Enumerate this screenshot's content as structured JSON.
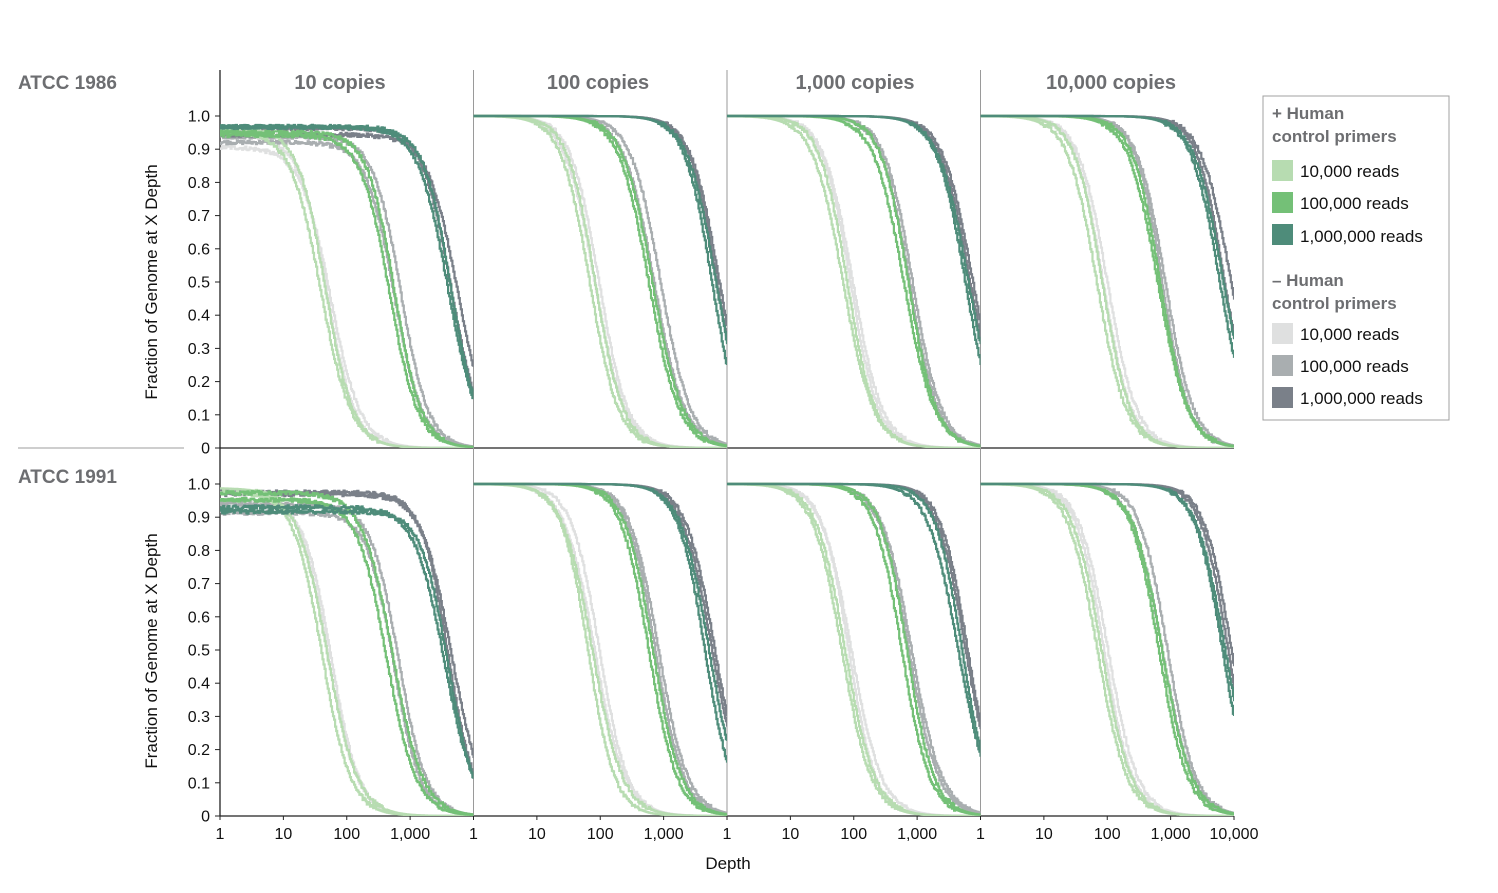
{
  "chart_data": {
    "type": "line",
    "row_labels": [
      "ATCC 1986",
      "ATCC 1991"
    ],
    "column_titles": [
      "10 copies",
      "100 copies",
      "1,000 copies",
      "10,000 copies"
    ],
    "ylabel": "Fraction of Genome  at X Depth",
    "xlabel": "Depth",
    "x_scale": "log",
    "xlim": [
      1,
      10000
    ],
    "ylim": [
      0,
      1.0
    ],
    "y_ticks": [
      "0",
      "0.1",
      "0.2",
      "0.3",
      "0.4",
      "0.5",
      "0.6",
      "0.7",
      "0.8",
      "0.9",
      "1.0"
    ],
    "x_ticks_first": [
      "1",
      "10",
      "100",
      "1,000"
    ],
    "x_ticks_last": [
      "1",
      "10",
      "100",
      "1,000",
      "10,000"
    ],
    "legend": {
      "plus_heading_line1": "+ Human",
      "plus_heading_line2": "control primers",
      "minus_heading_line1": "– Human",
      "minus_heading_line2": "control primers",
      "plus_items": [
        {
          "label": "10,000 reads",
          "color": "#b7dcb1"
        },
        {
          "label": "100,000 reads",
          "color": "#74c077"
        },
        {
          "label": "1,000,000 reads",
          "color": "#4e8c7a"
        }
      ],
      "minus_items": [
        {
          "label": "10,000 reads",
          "color": "#dfe0e0"
        },
        {
          "label": "100,000 reads",
          "color": "#a9aeb0"
        },
        {
          "label": "1,000,000 reads",
          "color": "#7a8089"
        }
      ]
    },
    "series_groups": [
      {
        "group": "+ Human control primers",
        "reads": "10,000 reads",
        "color": "#b7dcb1"
      },
      {
        "group": "+ Human control primers",
        "reads": "100,000 reads",
        "color": "#74c077"
      },
      {
        "group": "+ Human control primers",
        "reads": "1,000,000 reads",
        "color": "#4e8c7a"
      },
      {
        "group": "– Human control primers",
        "reads": "10,000 reads",
        "color": "#dfe0e0"
      },
      {
        "group": "– Human control primers",
        "reads": "100,000 reads",
        "color": "#a9aeb0"
      },
      {
        "group": "– Human control primers",
        "reads": "1,000,000 reads",
        "color": "#7a8089"
      }
    ],
    "panels": [
      {
        "row": 0,
        "col": 0,
        "plateau": 0.93,
        "medians": [
          42,
          520,
          4100
        ]
      },
      {
        "row": 0,
        "col": 1,
        "plateau": 1.0,
        "medians": [
          75,
          650,
          6000
        ]
      },
      {
        "row": 0,
        "col": 2,
        "plateau": 1.0,
        "medians": [
          75,
          650,
          6000
        ]
      },
      {
        "row": 0,
        "col": 3,
        "plateau": 1.0,
        "medians": [
          75,
          650,
          6500
        ]
      },
      {
        "row": 1,
        "col": 0,
        "plateau": 0.95,
        "medians": [
          45,
          480,
          3600
        ]
      },
      {
        "row": 1,
        "col": 1,
        "plateau": 1.0,
        "medians": [
          72,
          640,
          5000
        ]
      },
      {
        "row": 1,
        "col": 2,
        "plateau": 1.0,
        "medians": [
          70,
          620,
          5000
        ]
      },
      {
        "row": 1,
        "col": 3,
        "plateau": 1.0,
        "medians": [
          75,
          670,
          6800
        ]
      }
    ]
  }
}
